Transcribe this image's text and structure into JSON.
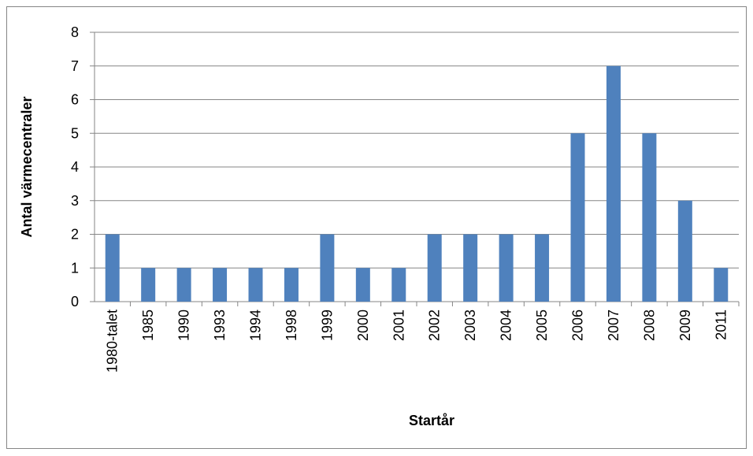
{
  "chart_data": {
    "type": "bar",
    "x_label": "Startår",
    "y_label": "Antal värmecentraler",
    "categories": [
      "1980-talet",
      "1985",
      "1990",
      "1993",
      "1994",
      "1998",
      "1999",
      "2000",
      "2001",
      "2002",
      "2003",
      "2004",
      "2005",
      "2006",
      "2007",
      "2008",
      "2009",
      "2011"
    ],
    "values": [
      2,
      1,
      1,
      1,
      1,
      1,
      2,
      1,
      1,
      2,
      2,
      2,
      2,
      5,
      7,
      5,
      3,
      1
    ],
    "color": "#4f81bd",
    "ylim": [
      0,
      8
    ],
    "yticks": [
      0,
      1,
      2,
      3,
      4,
      5,
      6,
      7,
      8
    ],
    "grid": true
  }
}
